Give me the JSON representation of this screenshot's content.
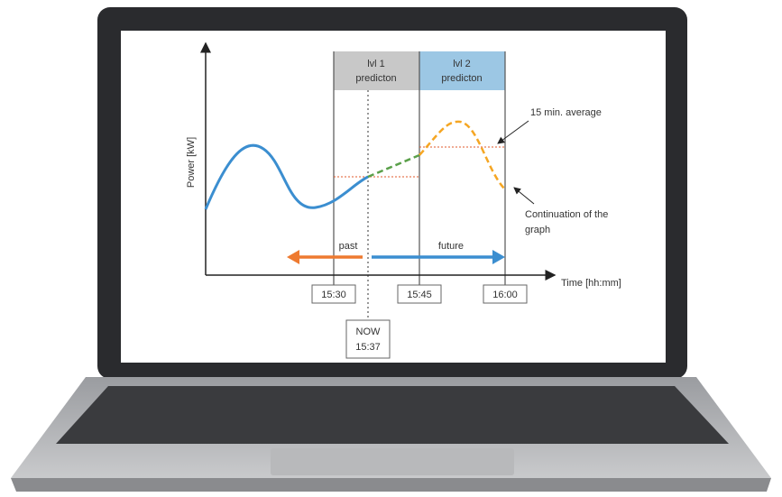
{
  "axes": {
    "y_label": "Power [kW]",
    "x_label": "Time [hh:mm]"
  },
  "regions": [
    {
      "label": [
        "lvl 1",
        "predicton"
      ]
    },
    {
      "label": [
        "lvl 2",
        "predicton"
      ]
    }
  ],
  "time_labels": [
    "15:30",
    "15:45",
    "16:00"
  ],
  "now": {
    "label": "NOW",
    "time": "15:37"
  },
  "arrows": {
    "past": "past",
    "future": "future"
  },
  "annotations": {
    "average": "15 min. average",
    "continuation": [
      "Continuation of the",
      "graph"
    ]
  }
}
